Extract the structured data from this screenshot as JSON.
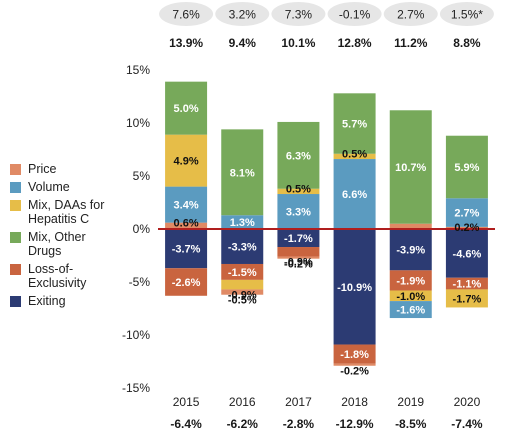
{
  "chart_data": {
    "type": "bar",
    "stacked": true,
    "categories": [
      "2015",
      "2016",
      "2017",
      "2018",
      "2019",
      "2020"
    ],
    "ylim": [
      -15,
      15
    ],
    "yticks": [
      -15,
      -10,
      -5,
      0,
      5,
      10,
      15
    ],
    "ytick_labels": [
      "-15%",
      "-10%",
      "-5%",
      "0%",
      "5%",
      "10%",
      "15%"
    ],
    "top_row": [
      "7.6%",
      "3.2%",
      "7.3%",
      "-0.1%",
      "2.7%",
      "1.5%*"
    ],
    "positive_totals": [
      "13.9%",
      "9.4%",
      "10.1%",
      "12.8%",
      "11.2%",
      "8.8%"
    ],
    "negative_totals": [
      "-6.4%",
      "-6.2%",
      "-2.8%",
      "-12.9%",
      "-8.5%",
      "-7.4%"
    ],
    "series": [
      {
        "name": "Price",
        "color": "#e08a65",
        "values": [
          0.6,
          0,
          0,
          0,
          0.5,
          0.2
        ],
        "labels": [
          "0.6%",
          "",
          "",
          "",
          "",
          "0.2%"
        ]
      },
      {
        "name": "Volume",
        "color": "#5b9bc0",
        "values": [
          3.4,
          1.3,
          3.3,
          6.6,
          0,
          2.7
        ],
        "labels": [
          "3.4%",
          "1.3%",
          "3.3%",
          "6.6%",
          "",
          "2.7%"
        ]
      },
      {
        "name": "Mix, DAAs for Hepatitis C",
        "color": "#e6bd48",
        "values": [
          4.9,
          0,
          0.5,
          0.5,
          0,
          0
        ],
        "labels": [
          "4.9%",
          "",
          "0.5%",
          "0.5%",
          "",
          ""
        ]
      },
      {
        "name": "Mix, Other Drugs",
        "color": "#77a95a",
        "values": [
          5.0,
          8.1,
          6.3,
          5.7,
          10.7,
          5.9
        ],
        "labels": [
          "5.0%",
          "8.1%",
          "6.3%",
          "5.7%",
          "10.7%",
          "5.9%"
        ]
      },
      {
        "name": "Exiting",
        "color": "#2c3b73",
        "values": [
          -3.7,
          -3.3,
          -1.7,
          -10.9,
          -3.9,
          -4.6
        ],
        "labels": [
          "-3.7%",
          "-3.3%",
          "-1.7%",
          "-10.9%",
          "-3.9%",
          "-4.6%"
        ]
      },
      {
        "name": "Loss-of-Exclusivity",
        "color": "#c9643f",
        "values": [
          -2.6,
          -1.5,
          -0.9,
          -1.8,
          -1.9,
          -1.1
        ],
        "labels": [
          "-2.6%",
          "-1.5%",
          "-0.9%",
          "-1.8%",
          "-1.9%",
          "-1.1%"
        ]
      },
      {
        "name": "Mix, DAAs for Hepatitis C",
        "color": "#e6bd48",
        "values": [
          0,
          -0.9,
          0,
          0,
          -1.0,
          -1.7
        ],
        "labels": [
          "",
          "-0.9%",
          "",
          "",
          "-1.0%",
          "-1.7%"
        ]
      },
      {
        "name": "Volume",
        "color": "#5b9bc0",
        "values": [
          0,
          0,
          0,
          0,
          -1.6,
          0
        ],
        "labels": [
          "",
          "",
          "",
          "",
          "-1.6%",
          ""
        ]
      },
      {
        "name": "Price",
        "color": "#e08a65",
        "values": [
          0,
          -0.5,
          -0.2,
          -0.2,
          0,
          0
        ],
        "labels": [
          "",
          "-0.5%",
          "-0.2%",
          "-0.2%",
          "",
          ""
        ]
      }
    ],
    "legend": {
      "placement": "left",
      "items": [
        {
          "label": "Price",
          "color": "#e08a65"
        },
        {
          "label": "Volume",
          "color": "#5b9bc0"
        },
        {
          "label": "Mix, DAAs for Hepatitis C",
          "color": "#e6bd48"
        },
        {
          "label": "Mix, Other Drugs",
          "color": "#77a95a"
        },
        {
          "label": "Loss-of-Exclusivity",
          "color": "#c9643f"
        },
        {
          "label": "Exiting",
          "color": "#2c3b73"
        }
      ]
    },
    "colors": {
      "zero_line": "#b01e1e",
      "top_pill": "#e6e6e6"
    }
  }
}
